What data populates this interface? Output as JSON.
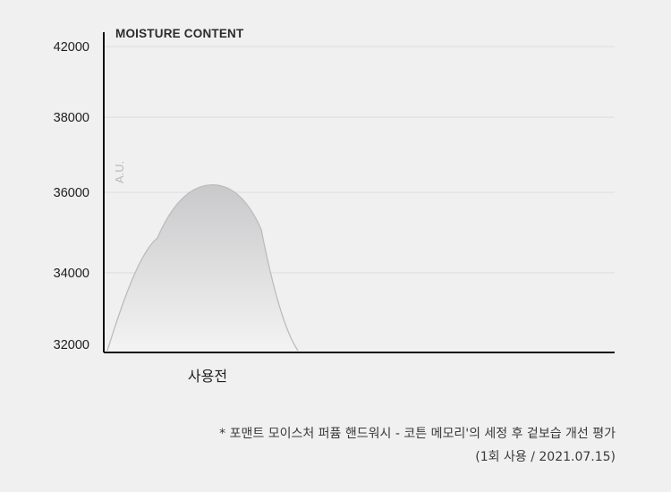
{
  "chart_data": {
    "type": "area",
    "title": "MOISTURE CONTENT",
    "ylabel": "A.U.",
    "ylim": [
      32000,
      42000
    ],
    "yticks": [
      "42000",
      "38000",
      "36000",
      "34000",
      "32000"
    ],
    "categories": [
      "사용전"
    ],
    "series": [
      {
        "values": [
          36200
        ]
      }
    ],
    "grid": true,
    "colors": {
      "axis": "#111111",
      "grid": "#dcdcdc",
      "fill_top": "#c9c9cb",
      "fill_bottom": "#f3f3f3",
      "outline": "#bcbcbc"
    }
  },
  "notes": {
    "line1": "* 포맨트 모이스처 퍼퓸 핸드워시 - 코튼 메모리'의 세정 후 겉보습 개선 평가",
    "line2": "(1회 사용 / 2021.07.15)"
  }
}
